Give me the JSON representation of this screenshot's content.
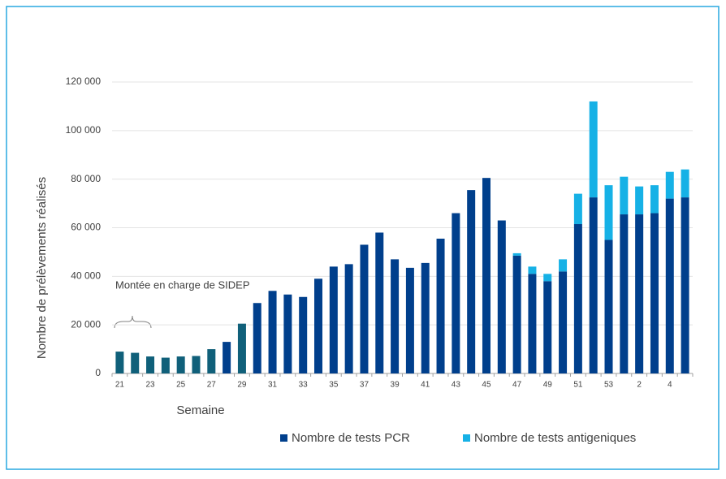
{
  "chart_data": {
    "type": "stacked_bar",
    "categories": [
      "21",
      null,
      "23",
      null,
      "25",
      null,
      "27",
      null,
      "29",
      null,
      "31",
      null,
      "33",
      null,
      "35",
      null,
      "37",
      null,
      "39",
      null,
      "41",
      null,
      "43",
      null,
      "45",
      null,
      "47",
      null,
      "49",
      null,
      "51",
      null,
      "53",
      null,
      "2",
      null,
      "4",
      null
    ],
    "series": [
      {
        "name": "Nombre de tests PCR",
        "color": "#003f8c",
        "colors": [
          "#10607a",
          "#10607a",
          "#10607a",
          "#10607a",
          "#10607a",
          "#10607a",
          "#10607a",
          "#003f8c",
          "#10607a",
          "#003f8c",
          "#003f8c",
          "#003f8c",
          "#003f8c",
          "#003f8c",
          "#003f8c",
          "#003f8c",
          "#003f8c",
          "#003f8c",
          "#003f8c",
          "#003f8c",
          "#003f8c",
          "#003f8c",
          "#003f8c",
          "#003f8c",
          "#003f8c",
          "#003f8c",
          "#003f8c",
          "#003f8c",
          "#003f8c",
          "#003f8c",
          "#003f8c",
          "#003f8c",
          "#003f8c",
          "#003f8c",
          "#003f8c",
          "#003f8c",
          "#003f8c",
          "#003f8c"
        ],
        "values": [
          9000,
          8500,
          7000,
          6500,
          7000,
          7200,
          10000,
          13000,
          20500,
          29000,
          34000,
          32500,
          31500,
          39000,
          44000,
          45000,
          53000,
          58000,
          47000,
          43500,
          45500,
          55500,
          66000,
          75500,
          80500,
          63000,
          48500,
          41000,
          38000,
          42000,
          61500,
          72500,
          55000,
          65500,
          65500,
          66000,
          72000,
          72500
        ]
      },
      {
        "name": "Nombre de tests antigeniques",
        "color": "#16b1e6",
        "values": [
          null,
          null,
          null,
          null,
          null,
          null,
          null,
          null,
          null,
          null,
          null,
          null,
          null,
          null,
          null,
          null,
          null,
          null,
          null,
          null,
          null,
          null,
          null,
          null,
          null,
          null,
          1000,
          3000,
          3000,
          5000,
          12500,
          39500,
          22500,
          15500,
          11500,
          11500,
          11000,
          11500
        ]
      }
    ],
    "ylim": [
      0,
      120000
    ],
    "yticks": [
      0,
      {
        "value": 20000,
        "label": "20 000"
      },
      {
        "value": 40000,
        "label": "40 000"
      },
      {
        "value": 60000,
        "label": "60 000"
      },
      {
        "value": 80000,
        "label": "80 000"
      },
      {
        "value": 100000,
        "label": "100 000"
      },
      {
        "value": 120000,
        "label": "120 000"
      }
    ],
    "grid": true,
    "y_label": "Nombre de prélèvements réalisés",
    "x_label": "Semaine",
    "annotation": "Montée en charge de SIDEP"
  }
}
